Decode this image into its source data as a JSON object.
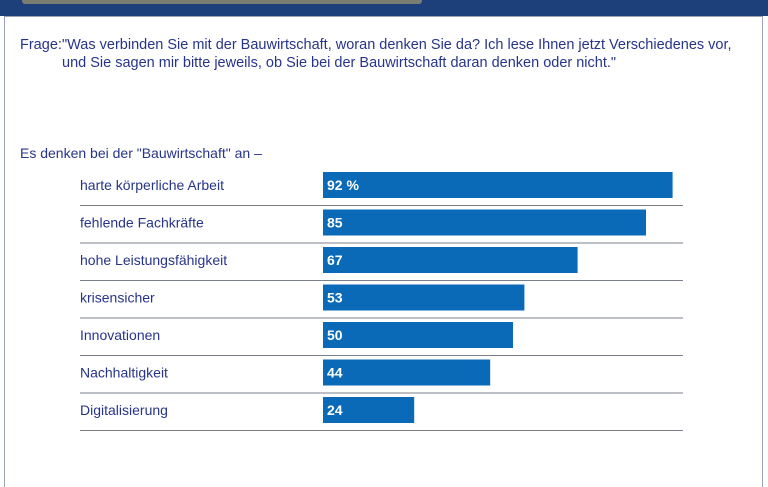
{
  "question": {
    "prefix": "Frage:",
    "text": "\"Was verbinden Sie mit der Bauwirtschaft, woran denken Sie da? Ich lese Ihnen jetzt Verschiedenes vor, und Sie sagen mir bitte jeweils, ob Sie bei der Bauwirtschaft daran denken oder nicht.\""
  },
  "intro": "Es denken bei der \"Bauwirtschaft\" an –",
  "colors": {
    "bar": "#0a6ab7",
    "text": "#27348b",
    "rule": "#7a7f8a"
  },
  "chart_data": {
    "type": "bar",
    "orientation": "horizontal",
    "title": "",
    "xlabel": "",
    "ylabel": "",
    "xlim": [
      0,
      100
    ],
    "grid": false,
    "categories": [
      "harte körperliche Arbeit",
      "fehlende Fachkräfte",
      "hohe Leistungsfähigkeit",
      "krisensicher",
      "Innovationen",
      "Nachhaltigkeit",
      "Digitalisierung"
    ],
    "values": [
      92,
      85,
      67,
      53,
      50,
      44,
      24
    ],
    "value_labels": [
      "92 %",
      "85",
      "67",
      "53",
      "50",
      "44",
      "24"
    ]
  }
}
